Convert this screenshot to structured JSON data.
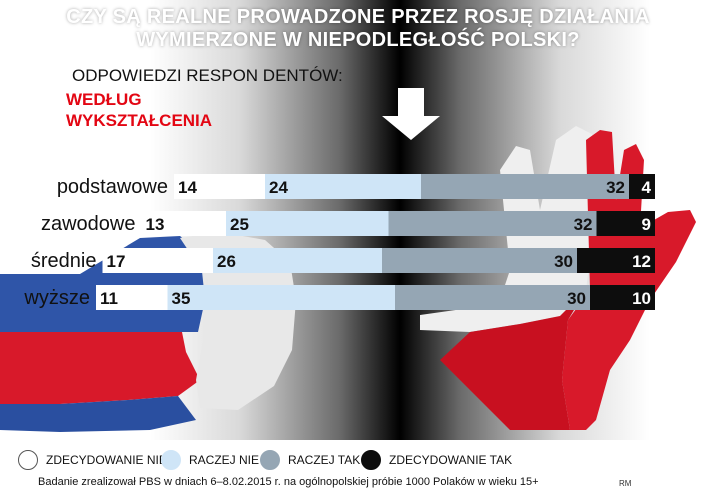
{
  "title_lines": [
    "CZY SĄ REALNE PROWADZONE PRZEZ ROSJĘ DZIAŁANIA",
    "WYMIERZONE W NIEPODLEGŁOŚĆ POLSKI?"
  ],
  "subtitle": "ODPOWIEDZI RESPON DENTÓW:",
  "group_label_lines": [
    "WEDŁUG",
    "WYKSZTAŁCENIA"
  ],
  "source": "Badanie zrealizował PBS w dniach 6–8.02.2015 r. na ogólnopolskiej próbie 1000 Polaków w wieku 15+",
  "credit": "RM",
  "colors": {
    "zdecydowanie_nie": "#ffffff",
    "raczej_nie": "#cfe5f7",
    "raczej_tak": "#95a6b4",
    "zdecydowanie_tak": "#0d0d0d",
    "accent_red": "#e30613",
    "title_text": "#ffffff"
  },
  "chart_data": {
    "type": "bar",
    "orientation": "horizontal",
    "stacked": true,
    "categories": [
      "podstawowe",
      "zawodowe",
      "średnie",
      "wyższe"
    ],
    "series": [
      {
        "name": "ZDECYDOWANIE NIE",
        "values": [
          14,
          13,
          17,
          11
        ]
      },
      {
        "name": "RACZEJ NIE",
        "values": [
          24,
          25,
          26,
          35
        ]
      },
      {
        "name": "RACZEJ TAK",
        "values": [
          32,
          32,
          30,
          30
        ]
      },
      {
        "name": "ZDECYDOWANIE TAK",
        "values": [
          4,
          9,
          12,
          10
        ]
      }
    ],
    "legend_position": "bottom",
    "gridlines": false
  }
}
